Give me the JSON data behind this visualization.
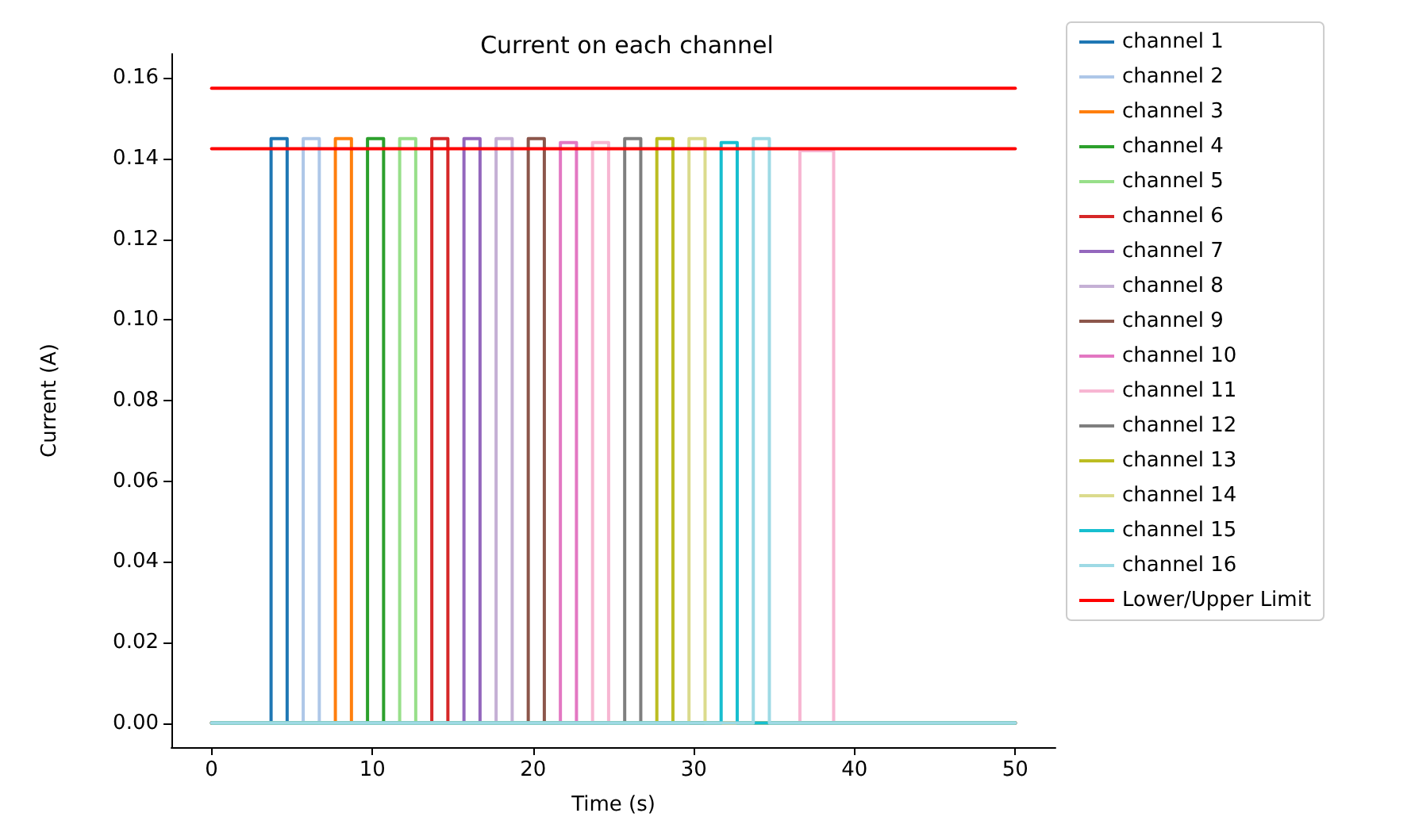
{
  "chart_data": {
    "type": "line",
    "title": "Current on each channel",
    "xlabel": "Time (s)",
    "ylabel": "Current (A)",
    "xlim": [
      -2.5,
      52.5
    ],
    "xticks": [
      0,
      10,
      20,
      30,
      40,
      50
    ],
    "ylim": [
      -0.006,
      0.166
    ],
    "yticks": [
      {
        "value": 0,
        "label": "0.00"
      },
      0.02,
      0.04,
      0.06,
      0.08,
      {
        "value": 0.1,
        "label": "0.10"
      },
      0.12,
      0.14,
      0.16
    ],
    "grid": false,
    "legend": "right",
    "marker": "none",
    "line_style": "solid",
    "series": [
      {
        "name": "channel 1",
        "color": "#1f77b4",
        "x": [
          0,
          3.7,
          3.7,
          4.7,
          4.7,
          50
        ],
        "values": [
          0,
          0,
          0.145,
          0.145,
          0,
          0
        ]
      },
      {
        "name": "channel 2",
        "color": "#aec7e8",
        "x": [
          0,
          5.7,
          5.7,
          6.7,
          6.7,
          50
        ],
        "values": [
          0,
          0,
          0.145,
          0.145,
          0,
          0
        ]
      },
      {
        "name": "channel 3",
        "color": "#ff7f0e",
        "x": [
          0,
          7.7,
          7.7,
          8.7,
          8.7,
          50
        ],
        "values": [
          0,
          0,
          0.145,
          0.145,
          0,
          0
        ]
      },
      {
        "name": "channel 4",
        "color": "#2ca02c",
        "x": [
          0,
          9.7,
          9.7,
          10.7,
          10.7,
          50
        ],
        "values": [
          0,
          0,
          0.145,
          0.145,
          0,
          0
        ]
      },
      {
        "name": "channel 5",
        "color": "#98df8a",
        "x": [
          0,
          11.7,
          11.7,
          12.7,
          12.7,
          50
        ],
        "values": [
          0,
          0,
          0.145,
          0.145,
          0,
          0
        ]
      },
      {
        "name": "channel 6",
        "color": "#d62728",
        "x": [
          0,
          13.7,
          13.7,
          14.7,
          14.7,
          50
        ],
        "values": [
          0,
          0,
          0.145,
          0.145,
          0,
          0
        ]
      },
      {
        "name": "channel 7",
        "color": "#9467bd",
        "x": [
          0,
          15.7,
          15.7,
          16.7,
          16.7,
          50
        ],
        "values": [
          0,
          0,
          0.145,
          0.145,
          0,
          0
        ]
      },
      {
        "name": "channel 8",
        "color": "#c5b0d5",
        "x": [
          0,
          17.7,
          17.7,
          18.7,
          18.7,
          50
        ],
        "values": [
          0,
          0,
          0.145,
          0.145,
          0,
          0
        ]
      },
      {
        "name": "channel 9",
        "color": "#8c564b",
        "x": [
          0,
          19.7,
          19.7,
          20.7,
          20.7,
          50
        ],
        "values": [
          0,
          0,
          0.145,
          0.145,
          0,
          0
        ]
      },
      {
        "name": "channel 10",
        "color": "#e377c2",
        "x": [
          0,
          21.7,
          21.7,
          22.7,
          22.7,
          50
        ],
        "values": [
          0,
          0,
          0.144,
          0.144,
          0,
          0
        ]
      },
      {
        "name": "channel 11",
        "color": "#f7b6d2",
        "x": [
          0,
          23.7,
          23.7,
          24.7,
          24.7,
          36.6,
          36.6,
          38.7,
          38.7,
          50
        ],
        "values": [
          0,
          0,
          0.144,
          0.144,
          0,
          0,
          0.142,
          0.142,
          0,
          0
        ]
      },
      {
        "name": "channel 12",
        "color": "#7f7f7f",
        "x": [
          0,
          25.7,
          25.7,
          26.7,
          26.7,
          50
        ],
        "values": [
          0,
          0,
          0.145,
          0.145,
          0,
          0
        ]
      },
      {
        "name": "channel 13",
        "color": "#bcbd22",
        "x": [
          0,
          27.7,
          27.7,
          28.7,
          28.7,
          50
        ],
        "values": [
          0,
          0,
          0.145,
          0.145,
          0,
          0
        ]
      },
      {
        "name": "channel 14",
        "color": "#dbdb8d",
        "x": [
          0,
          29.7,
          29.7,
          30.7,
          30.7,
          50
        ],
        "values": [
          0,
          0,
          0.145,
          0.145,
          0,
          0
        ]
      },
      {
        "name": "channel 15",
        "color": "#17becf",
        "x": [
          0,
          31.7,
          31.7,
          32.7,
          32.7,
          50
        ],
        "values": [
          0,
          0,
          0.144,
          0.144,
          0,
          0
        ]
      },
      {
        "name": "channel 16",
        "color": "#9edae5",
        "x": [
          0,
          33.7,
          33.7,
          34.7,
          34.7,
          50
        ],
        "values": [
          0,
          0,
          0.145,
          0.145,
          0,
          0
        ]
      },
      {
        "name": "Lower/Upper Limit",
        "color": "#ff0000",
        "x": [
          0,
          50
        ],
        "values": [
          0.1575,
          0.1575
        ]
      },
      {
        "color": "#ff0000",
        "x": [
          0,
          50
        ],
        "values": [
          0.1425,
          0.1425
        ]
      }
    ]
  }
}
